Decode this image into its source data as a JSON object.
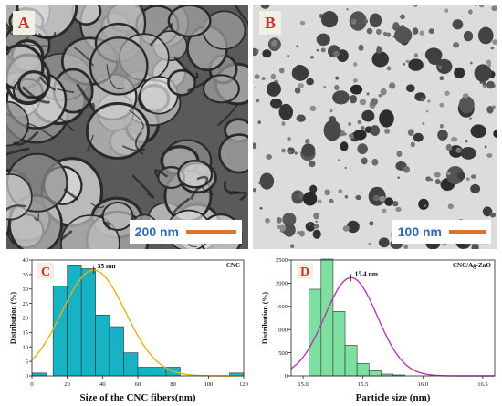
{
  "panel_a": {
    "letter": "A",
    "scale_label": "200 nm",
    "tiny_scale_text": "200.0 nm"
  },
  "panel_b": {
    "letter": "B",
    "scale_label": "100 nm",
    "tiny_scale_text": "100.0 nm"
  },
  "chart_data": [
    {
      "type": "bar",
      "letter": "C",
      "corner_label": "CNC",
      "annotation": "35 nm",
      "xlabel": "Size of the CNC fibers(nm)",
      "ylabel": "Distribution (%)",
      "xlim": [
        0,
        120
      ],
      "ylim": [
        0,
        40
      ],
      "xticks": [
        "0",
        "20",
        "40",
        "60",
        "80",
        "100",
        "120"
      ],
      "yticks": [
        "0",
        "5",
        "10",
        "15",
        "20",
        "25",
        "30",
        "35",
        "40"
      ],
      "bin_width": 8,
      "bins": [
        4,
        16,
        24,
        32,
        40,
        48,
        56,
        64,
        72,
        80,
        88,
        116
      ],
      "values": [
        1,
        31,
        38,
        37,
        21,
        17,
        8,
        3,
        3,
        3,
        0,
        1
      ],
      "fit_peak": 35,
      "fit_peak_value": 36.5,
      "fit_sigma": 18,
      "bar_color": "#17b3c4",
      "fit_color": "#e3b214"
    },
    {
      "type": "bar",
      "letter": "D",
      "corner_label": "CNC/Ag-ZnO",
      "annotation": "15.4 nm",
      "xlabel": "Particle size (nm)",
      "ylabel": "Distribution (%)",
      "xlim": [
        14.9,
        16.6
      ],
      "ylim": [
        0,
        2500
      ],
      "xticks": [
        "15.0",
        "15.5",
        "16.0",
        "16.5"
      ],
      "yticks": [
        "0",
        "500",
        "1000",
        "1500",
        "2000",
        "2500"
      ],
      "bin_width": 0.1,
      "bins": [
        15.1,
        15.2,
        15.3,
        15.4,
        15.5,
        15.6,
        15.7,
        15.8,
        15.9,
        16.0
      ],
      "values": [
        1870,
        2520,
        1390,
        660,
        270,
        110,
        40,
        20,
        0,
        0
      ],
      "fit_peak": 15.4,
      "fit_peak_value": 2120,
      "fit_sigma": 0.22,
      "bar_color": "#7ee0a0",
      "fit_color": "#b03cb3"
    }
  ]
}
